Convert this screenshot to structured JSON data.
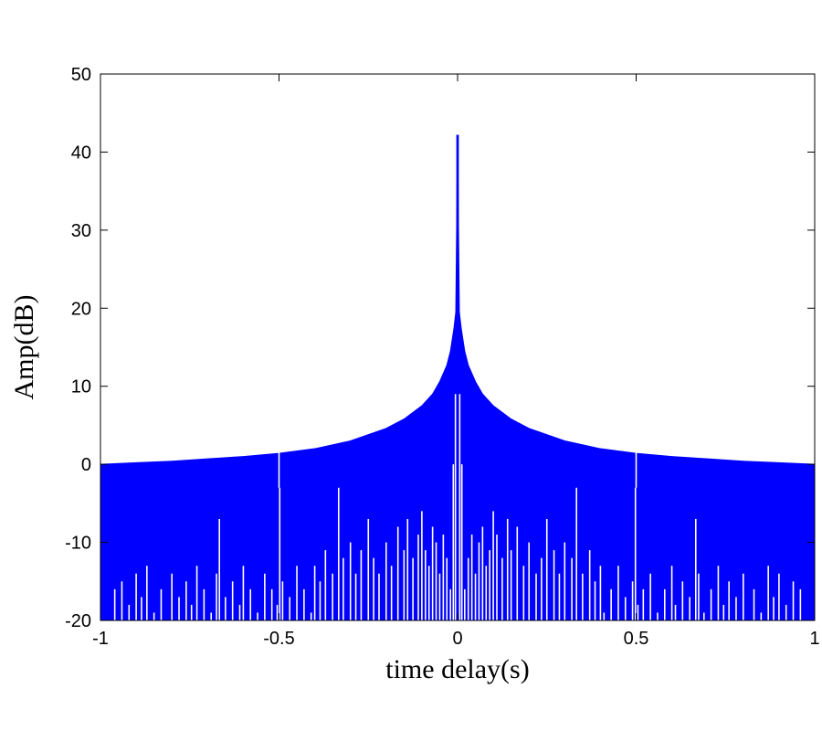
{
  "chart_data": {
    "type": "area",
    "title": "",
    "xlabel": "time delay(s)",
    "ylabel": "Amp(dB)",
    "xlim": [
      -1,
      1
    ],
    "ylim": [
      -20,
      50
    ],
    "x_ticks": [
      -1,
      -0.5,
      0,
      0.5,
      1
    ],
    "x_tick_labels": [
      "-1",
      "-0.5",
      "0",
      "0.5",
      "1"
    ],
    "y_ticks": [
      -20,
      -10,
      0,
      10,
      20,
      30,
      40,
      50
    ],
    "y_tick_labels": [
      "-20",
      "-10",
      "0",
      "10",
      "20",
      "30",
      "40",
      "50"
    ],
    "grid": false,
    "series_color": "#0000ff",
    "envelope": {
      "x": [
        -1,
        -0.9,
        -0.8,
        -0.7,
        -0.6,
        -0.5,
        -0.4,
        -0.3,
        -0.2,
        -0.15,
        -0.1,
        -0.07,
        -0.05,
        -0.03,
        -0.02,
        -0.01,
        -0.005,
        0,
        0.005,
        0.01,
        0.02,
        0.03,
        0.05,
        0.07,
        0.1,
        0.15,
        0.2,
        0.3,
        0.4,
        0.5,
        0.6,
        0.7,
        0.8,
        0.9,
        1
      ],
      "y": [
        0,
        0.2,
        0.4,
        0.7,
        1.0,
        1.4,
        2.0,
        3.0,
        4.6,
        5.8,
        7.5,
        9.0,
        10.6,
        12.7,
        14.5,
        17.5,
        19.5,
        42.2,
        19.5,
        17.5,
        14.5,
        12.7,
        10.6,
        9.0,
        7.5,
        5.8,
        4.6,
        3.0,
        2.0,
        1.4,
        1.0,
        0.7,
        0.4,
        0.2,
        0
      ]
    },
    "peak": {
      "x": 0,
      "y": 42.2
    },
    "notches": [
      {
        "x": -0.5,
        "y": -3
      },
      {
        "x": 0.5,
        "y": -3
      }
    ],
    "dips": [
      {
        "x": -0.995,
        "y": -20
      },
      {
        "x": -0.975,
        "y": -20
      },
      {
        "x": -0.96,
        "y": -16
      },
      {
        "x": -0.94,
        "y": -15
      },
      {
        "x": -0.92,
        "y": -18
      },
      {
        "x": -0.9,
        "y": -14
      },
      {
        "x": -0.885,
        "y": -17
      },
      {
        "x": -0.87,
        "y": -13
      },
      {
        "x": -0.85,
        "y": -19
      },
      {
        "x": -0.83,
        "y": -16
      },
      {
        "x": -0.81,
        "y": -20
      },
      {
        "x": -0.8,
        "y": -14
      },
      {
        "x": -0.78,
        "y": -17
      },
      {
        "x": -0.76,
        "y": -15
      },
      {
        "x": -0.745,
        "y": -18
      },
      {
        "x": -0.73,
        "y": -13
      },
      {
        "x": -0.71,
        "y": -16
      },
      {
        "x": -0.69,
        "y": -19
      },
      {
        "x": -0.675,
        "y": -14
      },
      {
        "x": -0.667,
        "y": -7
      },
      {
        "x": -0.65,
        "y": -17
      },
      {
        "x": -0.63,
        "y": -15
      },
      {
        "x": -0.61,
        "y": -18
      },
      {
        "x": -0.6,
        "y": -13
      },
      {
        "x": -0.58,
        "y": -16
      },
      {
        "x": -0.56,
        "y": -19
      },
      {
        "x": -0.54,
        "y": -14
      },
      {
        "x": -0.52,
        "y": -16
      },
      {
        "x": -0.505,
        "y": -18
      },
      {
        "x": -0.498,
        "y": -3
      },
      {
        "x": -0.49,
        "y": -15
      },
      {
        "x": -0.47,
        "y": -17
      },
      {
        "x": -0.45,
        "y": -13
      },
      {
        "x": -0.43,
        "y": -16
      },
      {
        "x": -0.41,
        "y": -19
      },
      {
        "x": -0.4,
        "y": -13
      },
      {
        "x": -0.385,
        "y": -15
      },
      {
        "x": -0.37,
        "y": -11
      },
      {
        "x": -0.35,
        "y": -14
      },
      {
        "x": -0.333,
        "y": -3
      },
      {
        "x": -0.32,
        "y": -12
      },
      {
        "x": -0.3,
        "y": -10
      },
      {
        "x": -0.285,
        "y": -14
      },
      {
        "x": -0.27,
        "y": -11
      },
      {
        "x": -0.25,
        "y": -7
      },
      {
        "x": -0.235,
        "y": -12
      },
      {
        "x": -0.22,
        "y": -14
      },
      {
        "x": -0.2,
        "y": -10
      },
      {
        "x": -0.185,
        "y": -13
      },
      {
        "x": -0.167,
        "y": -8
      },
      {
        "x": -0.15,
        "y": -11
      },
      {
        "x": -0.14,
        "y": -7
      },
      {
        "x": -0.125,
        "y": -12
      },
      {
        "x": -0.11,
        "y": -9
      },
      {
        "x": -0.1,
        "y": -6
      },
      {
        "x": -0.09,
        "y": -11
      },
      {
        "x": -0.08,
        "y": -13
      },
      {
        "x": -0.07,
        "y": -8
      },
      {
        "x": -0.06,
        "y": -10
      },
      {
        "x": -0.05,
        "y": -14
      },
      {
        "x": -0.04,
        "y": -9
      },
      {
        "x": -0.03,
        "y": -12
      },
      {
        "x": -0.02,
        "y": -16
      },
      {
        "x": -0.012,
        "y": 0
      },
      {
        "x": -0.006,
        "y": 9
      },
      {
        "x": 0.006,
        "y": 9
      },
      {
        "x": 0.012,
        "y": 0
      },
      {
        "x": 0.02,
        "y": -16
      },
      {
        "x": 0.03,
        "y": -12
      },
      {
        "x": 0.04,
        "y": -9
      },
      {
        "x": 0.05,
        "y": -14
      },
      {
        "x": 0.06,
        "y": -10
      },
      {
        "x": 0.07,
        "y": -8
      },
      {
        "x": 0.08,
        "y": -13
      },
      {
        "x": 0.09,
        "y": -11
      },
      {
        "x": 0.1,
        "y": -6
      },
      {
        "x": 0.11,
        "y": -9
      },
      {
        "x": 0.125,
        "y": -12
      },
      {
        "x": 0.14,
        "y": -7
      },
      {
        "x": 0.15,
        "y": -11
      },
      {
        "x": 0.167,
        "y": -8
      },
      {
        "x": 0.185,
        "y": -13
      },
      {
        "x": 0.2,
        "y": -10
      },
      {
        "x": 0.22,
        "y": -14
      },
      {
        "x": 0.235,
        "y": -12
      },
      {
        "x": 0.25,
        "y": -7
      },
      {
        "x": 0.27,
        "y": -11
      },
      {
        "x": 0.285,
        "y": -14
      },
      {
        "x": 0.3,
        "y": -10
      },
      {
        "x": 0.32,
        "y": -12
      },
      {
        "x": 0.333,
        "y": -3
      },
      {
        "x": 0.35,
        "y": -14
      },
      {
        "x": 0.37,
        "y": -11
      },
      {
        "x": 0.385,
        "y": -15
      },
      {
        "x": 0.4,
        "y": -13
      },
      {
        "x": 0.41,
        "y": -19
      },
      {
        "x": 0.43,
        "y": -16
      },
      {
        "x": 0.45,
        "y": -13
      },
      {
        "x": 0.47,
        "y": -17
      },
      {
        "x": 0.49,
        "y": -15
      },
      {
        "x": 0.498,
        "y": -3
      },
      {
        "x": 0.505,
        "y": -18
      },
      {
        "x": 0.52,
        "y": -16
      },
      {
        "x": 0.54,
        "y": -14
      },
      {
        "x": 0.56,
        "y": -19
      },
      {
        "x": 0.58,
        "y": -16
      },
      {
        "x": 0.6,
        "y": -13
      },
      {
        "x": 0.61,
        "y": -18
      },
      {
        "x": 0.63,
        "y": -15
      },
      {
        "x": 0.65,
        "y": -17
      },
      {
        "x": 0.667,
        "y": -7
      },
      {
        "x": 0.675,
        "y": -14
      },
      {
        "x": 0.69,
        "y": -19
      },
      {
        "x": 0.71,
        "y": -16
      },
      {
        "x": 0.73,
        "y": -13
      },
      {
        "x": 0.745,
        "y": -18
      },
      {
        "x": 0.76,
        "y": -15
      },
      {
        "x": 0.78,
        "y": -17
      },
      {
        "x": 0.8,
        "y": -14
      },
      {
        "x": 0.81,
        "y": -20
      },
      {
        "x": 0.83,
        "y": -16
      },
      {
        "x": 0.85,
        "y": -19
      },
      {
        "x": 0.87,
        "y": -13
      },
      {
        "x": 0.885,
        "y": -17
      },
      {
        "x": 0.9,
        "y": -14
      },
      {
        "x": 0.92,
        "y": -18
      },
      {
        "x": 0.94,
        "y": -15
      },
      {
        "x": 0.96,
        "y": -16
      },
      {
        "x": 0.975,
        "y": -20
      },
      {
        "x": 0.995,
        "y": -20
      }
    ]
  }
}
